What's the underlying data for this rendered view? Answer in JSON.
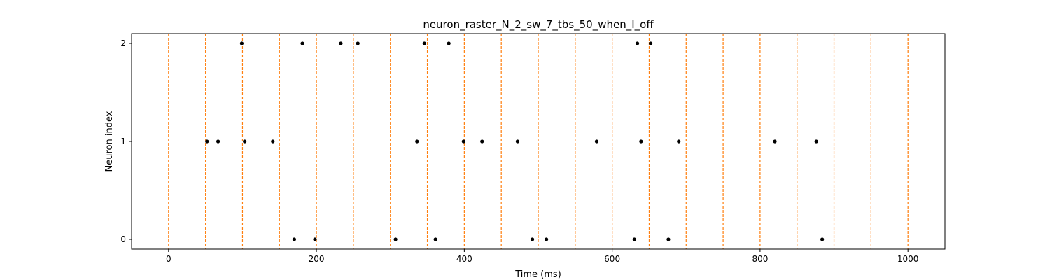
{
  "chart_data": {
    "type": "scatter",
    "title": "neuron_raster_N_2_sw_7_tbs_50_when_I_off",
    "xlabel": "Time (ms)",
    "ylabel": "Neuron index",
    "xlim": [
      -50,
      1050
    ],
    "ylim": [
      -0.1,
      2.1
    ],
    "x_ticks": [
      0,
      200,
      400,
      600,
      800,
      1000
    ],
    "y_ticks": [
      0,
      1,
      2
    ],
    "grid": false,
    "legend": "none",
    "marker_color": "#000000",
    "vline_color": "#ff7f0e",
    "vlines_x": [
      0,
      50,
      100,
      150,
      200,
      250,
      300,
      350,
      400,
      450,
      500,
      550,
      600,
      650,
      700,
      750,
      800,
      850,
      900,
      950,
      1000
    ],
    "series": [
      {
        "neuron": 0,
        "x": [
          170,
          198,
          307,
          361,
          492,
          511,
          630,
          676,
          884
        ]
      },
      {
        "neuron": 1,
        "x": [
          52,
          67,
          103,
          141,
          336,
          399,
          424,
          472,
          579,
          639,
          690,
          820,
          876
        ]
      },
      {
        "neuron": 2,
        "x": [
          99,
          181,
          233,
          256,
          346,
          379,
          634,
          652
        ]
      }
    ]
  }
}
